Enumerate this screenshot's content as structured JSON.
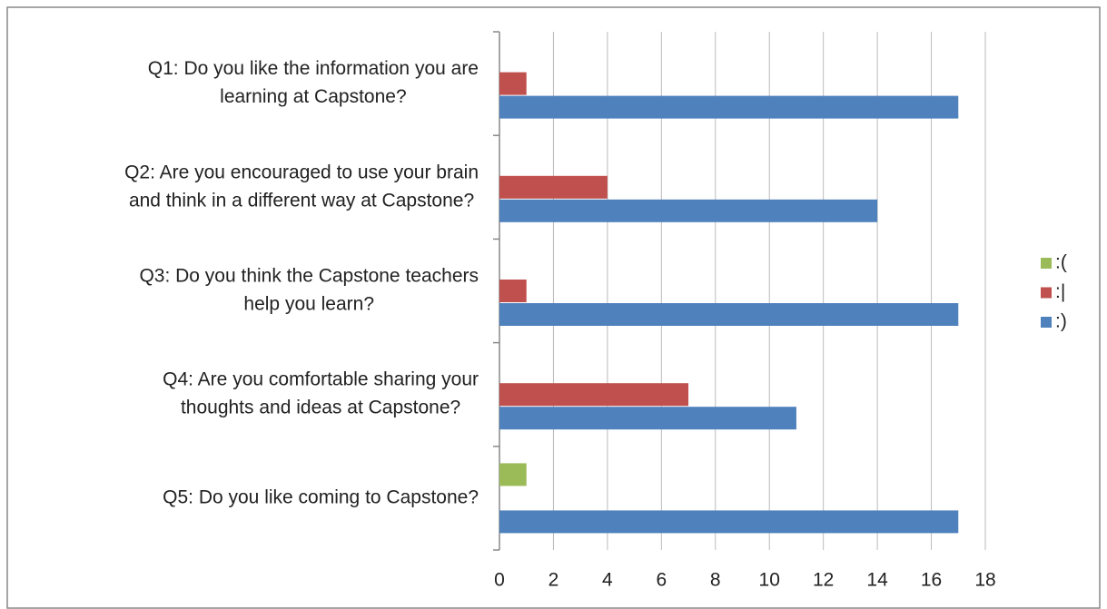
{
  "chart_data": {
    "type": "bar",
    "orientation": "horizontal",
    "categories": [
      [
        "Q1:  Do you like the information you are",
        "learning at Capstone?"
      ],
      [
        "Q2: Are you encouraged to use your brain",
        "and think in a different way at Capstone?"
      ],
      [
        "Q3: Do you think the Capstone teachers",
        "help you learn?"
      ],
      [
        "Q4:  Are you comfortable sharing your",
        "thoughts and ideas at Capstone?"
      ],
      [
        "Q5:  Do you like coming to Capstone?"
      ]
    ],
    "series": [
      {
        "name": ":(",
        "color": "#9bbb59",
        "values": [
          0,
          0,
          0,
          0,
          1
        ]
      },
      {
        "name": ":|",
        "color": "#c0504d",
        "values": [
          1,
          4,
          1,
          7,
          0
        ]
      },
      {
        "name": ":)",
        "color": "#4f81bd",
        "values": [
          17,
          14,
          17,
          11,
          17
        ]
      }
    ],
    "xlim": [
      0,
      18
    ],
    "xticks": [
      0,
      2,
      4,
      6,
      8,
      10,
      12,
      14,
      16,
      18
    ],
    "grid": true,
    "legend": "right"
  }
}
